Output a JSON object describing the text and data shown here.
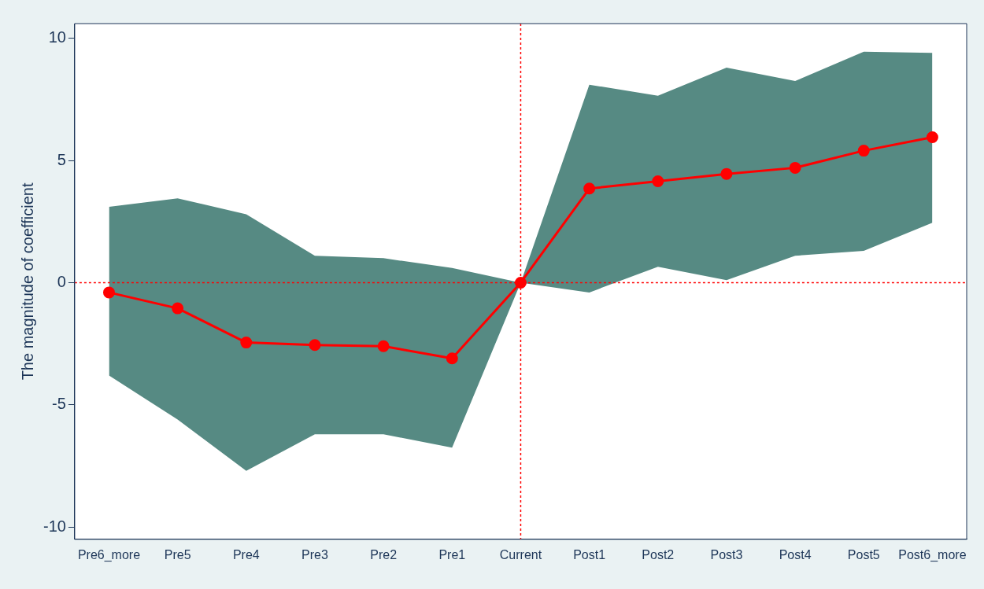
{
  "chart_data": {
    "type": "line",
    "ylabel": "The magnitude of coefficient",
    "categories": [
      "Pre6_more",
      "Pre5",
      "Pre4",
      "Pre3",
      "Pre2",
      "Pre1",
      "Current",
      "Post1",
      "Post2",
      "Post3",
      "Post4",
      "Post5",
      "Post6_more"
    ],
    "series": [
      {
        "color": "#ff0000",
        "values": [
          -0.4,
          -1.05,
          -2.45,
          -2.55,
          -2.6,
          -3.1,
          0,
          3.85,
          4.15,
          4.45,
          4.7,
          5.4,
          5.95
        ],
        "lower": [
          -3.8,
          -5.6,
          -7.7,
          -6.2,
          -6.2,
          -6.75,
          0,
          -0.4,
          0.65,
          0.1,
          1.1,
          1.3,
          2.45
        ],
        "upper": [
          3.1,
          3.45,
          2.8,
          1.1,
          1.0,
          0.6,
          0,
          8.1,
          7.65,
          8.8,
          8.25,
          9.45,
          9.4
        ]
      }
    ],
    "ylim": [
      -10.5,
      10.6
    ],
    "yticks": [
      -10,
      -5,
      0,
      5,
      10
    ],
    "ref_lines": [
      {
        "axis": "x",
        "value": "Current",
        "color": "#ff0000",
        "line_style": "dashed"
      },
      {
        "axis": "y",
        "value": 0,
        "color": "#ff0000",
        "line_style": "dashed"
      }
    ],
    "grid": false,
    "legend": false,
    "marker": "circle",
    "line_style": "solid"
  }
}
